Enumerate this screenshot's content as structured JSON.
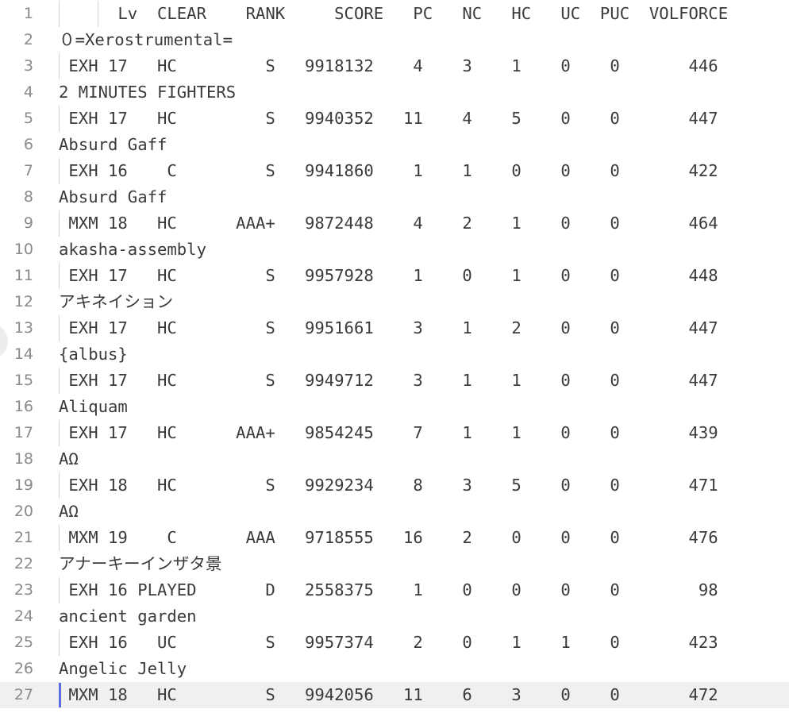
{
  "editor": {
    "current_line": 27,
    "lines": [
      {
        "num": "1",
        "text": "      Lv  CLEAR    RANK     SCORE   PC   NC   HC   UC  PUC  VOLFORCE",
        "guide": true,
        "guide2": true
      },
      {
        "num": "2",
        "text": "０=Xerostrumental="
      },
      {
        "num": "3",
        "text": " EXH 17   HC         S   9918132    4    3    1    0    0       446",
        "guide": true
      },
      {
        "num": "4",
        "text": "2 MINUTES FIGHTERS"
      },
      {
        "num": "5",
        "text": " EXH 17   HC         S   9940352   11    4    5    0    0       447",
        "guide": true
      },
      {
        "num": "6",
        "text": "Absurd Gaff"
      },
      {
        "num": "7",
        "text": " EXH 16    C         S   9941860    1    1    0    0    0       422",
        "guide": true
      },
      {
        "num": "8",
        "text": "Absurd Gaff"
      },
      {
        "num": "9",
        "text": " MXM 18   HC      AAA+   9872448    4    2    1    0    0       464",
        "guide": true
      },
      {
        "num": "10",
        "text": "akasha-assembly"
      },
      {
        "num": "11",
        "text": " EXH 17   HC         S   9957928    1    0    1    0    0       448",
        "guide": true
      },
      {
        "num": "12",
        "text": "アキネイション"
      },
      {
        "num": "13",
        "text": " EXH 17   HC         S   9951661    3    1    2    0    0       447",
        "guide": true
      },
      {
        "num": "14",
        "text": "{albus}"
      },
      {
        "num": "15",
        "text": " EXH 17   HC         S   9949712    3    1    1    0    0       447",
        "guide": true
      },
      {
        "num": "16",
        "text": "Aliquam"
      },
      {
        "num": "17",
        "text": " EXH 17   HC      AAA+   9854245    7    1    1    0    0       439",
        "guide": true
      },
      {
        "num": "18",
        "text": "AΩ"
      },
      {
        "num": "19",
        "text": " EXH 18   HC         S   9929234    8    3    5    0    0       471",
        "guide": true
      },
      {
        "num": "20",
        "text": "AΩ"
      },
      {
        "num": "21",
        "text": " MXM 19    C       AAA   9718555   16    2    0    0    0       476",
        "guide": true
      },
      {
        "num": "22",
        "text": "アナーキーインザタ景"
      },
      {
        "num": "23",
        "text": " EXH 16 PLAYED       D   2558375    1    0    0    0    0        98",
        "guide": true
      },
      {
        "num": "24",
        "text": "ancient garden"
      },
      {
        "num": "25",
        "text": " EXH 16   UC         S   9957374    2    0    1    1    0       423",
        "guide": true
      },
      {
        "num": "26",
        "text": "Angelic Jelly"
      },
      {
        "num": "27",
        "text": " MXM 18   HC         S   9942056   11    6    3    0    0       472",
        "guide": true
      }
    ]
  }
}
